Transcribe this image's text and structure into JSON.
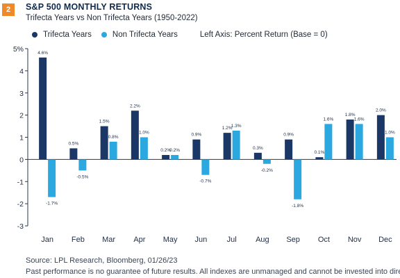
{
  "header": {
    "badge_number": "2",
    "title": "S&P 500 MONTHLY RETURNS",
    "subtitle": "Trifecta Years vs Non Trifecta Years (1950-2022)"
  },
  "legend": {
    "note": "Left Axis: Percent Return (Base = 0)"
  },
  "footer": {
    "source": "Source:  LPL Research, Bloomberg,  01/26/23",
    "disclaimer": "Past performance is no guarantee of future results. All indexes are unmanaged and cannot be invested into directly."
  },
  "colors": {
    "trifecta": "#1a3766",
    "non_trifecta": "#2ba8e0",
    "badge": "#ef8a2b"
  },
  "chart_data": {
    "type": "bar",
    "title": "S&P 500 MONTHLY RETURNS",
    "subtitle": "Trifecta Years vs Non Trifecta Years (1950-2022)",
    "categories": [
      "Jan",
      "Feb",
      "Mar",
      "Apr",
      "May",
      "Jun",
      "Jul",
      "Aug",
      "Sep",
      "Oct",
      "Nov",
      "Dec"
    ],
    "series": [
      {
        "name": "Trifecta Years",
        "values": [
          4.6,
          0.5,
          1.5,
          2.2,
          0.2,
          0.9,
          1.2,
          0.3,
          0.9,
          0.1,
          1.8,
          2.0
        ],
        "labels": [
          "4.6%",
          "0.5%",
          "1.5%",
          "2.2%",
          "0.2%",
          "0.9%",
          "1.2%",
          "0.3%",
          "0.9%",
          "0.1%",
          "1.8%",
          "2.0%"
        ]
      },
      {
        "name": "Non Trifecta Years",
        "values": [
          -1.7,
          -0.5,
          0.8,
          1.0,
          0.2,
          -0.7,
          1.3,
          -0.2,
          -1.8,
          1.6,
          1.6,
          1.0
        ],
        "labels": [
          "-1.7%",
          "-0.5%",
          "0.8%",
          "1.0%",
          "0.2%",
          "-0.7%",
          "1.3%",
          "-0.2%",
          "-1.8%",
          "1.6%",
          "1.6%",
          "1.0%"
        ]
      }
    ],
    "ylim": [
      -3,
      5
    ],
    "yticks": [
      "5%",
      "4",
      "3",
      "2",
      "1",
      "0",
      "-1",
      "-2",
      "-3"
    ],
    "ytick_values": [
      5,
      4,
      3,
      2,
      1,
      0,
      -1,
      -2,
      -3
    ],
    "grid": false,
    "legend_position": "top-left",
    "xlabel": "",
    "ylabel": ""
  }
}
